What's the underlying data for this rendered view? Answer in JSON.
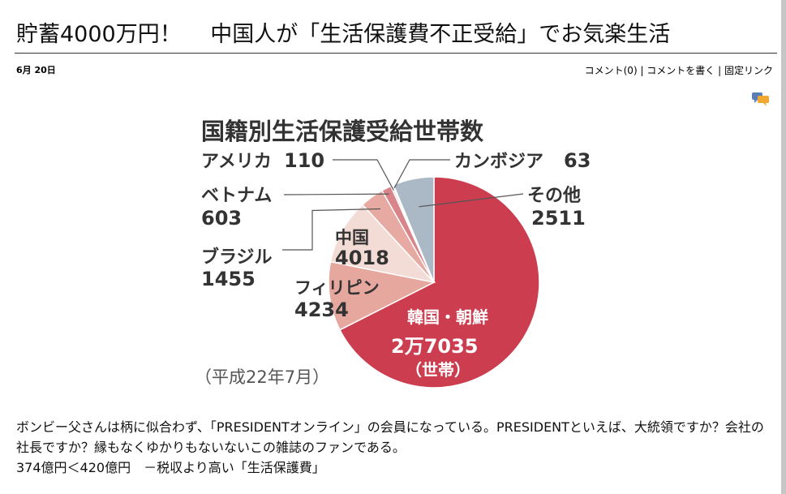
{
  "post": {
    "title": "貯蓄4000万円！　 中国人が「生活保護費不正受給」でお気楽生活",
    "date": "6月 20日",
    "links": {
      "comments": "コメント(0)",
      "sep1": " | ",
      "write_comment": "コメントを書く",
      "sep2": " | ",
      "permalink": "固定リンク"
    },
    "comment_icon": "speech-bubbles-icon"
  },
  "chart_data": {
    "type": "pie",
    "title": "国籍別生活保護受給世帯数",
    "note": "（平成22年7月）",
    "unit_label": "（世帯）",
    "slices": [
      {
        "label": "韓国・朝鮮",
        "value_text": "2万7035",
        "value": 27035,
        "color": "#cc3d4f"
      },
      {
        "label": "フィリピン",
        "value_text": "4234",
        "value": 4234,
        "color": "#e6a79f"
      },
      {
        "label": "中国",
        "value_text": "4018",
        "value": 4018,
        "color": "#f4dcd6"
      },
      {
        "label": "ブラジル",
        "value_text": "1455",
        "value": 1455,
        "color": "#e7aaa3"
      },
      {
        "label": "ベトナム",
        "value_text": "603",
        "value": 603,
        "color": "#d9848a"
      },
      {
        "label": "アメリカ",
        "value_text": "110",
        "value": 110,
        "color": "#ecbfbf"
      },
      {
        "label": "カンボジア",
        "value_text": "63",
        "value": 63,
        "color": "#b84a55"
      },
      {
        "label": "その他",
        "value_text": "2511",
        "value": 2511,
        "color": "#abb8c5"
      }
    ]
  },
  "article": {
    "para1": "ボンビー父さんは柄に似合わず、「PRESIDENTオンライン」の会員になっている。PRESIDENTといえば、大統領ですか？会社の社長ですか？縁もなくゆかりもないないこの雑誌のファンである。",
    "para2": "374億円＜420億円　－税収より高い「生活保護費」"
  }
}
